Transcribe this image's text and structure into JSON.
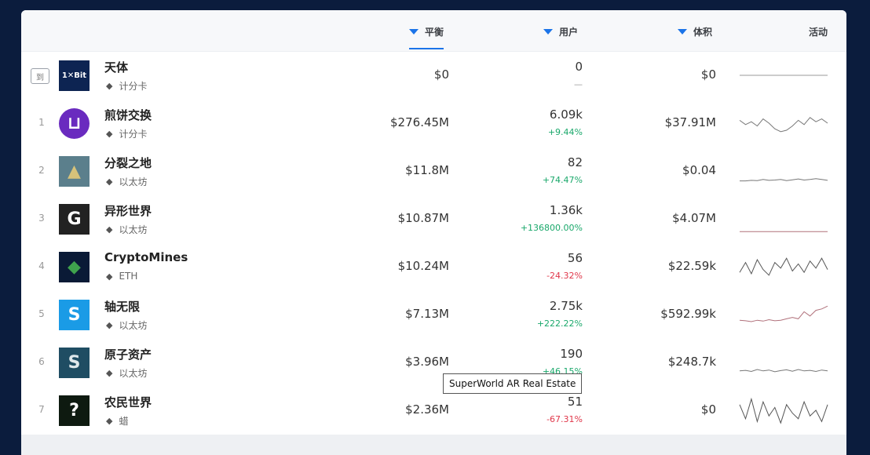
{
  "header": {
    "balance_label": "平衡",
    "users_label": "用户",
    "volume_label": "体积",
    "activity_label": "活动"
  },
  "rows": [
    {
      "rank": "到",
      "name": "天体",
      "chain": "计分卡",
      "balance": "$0",
      "users": "0",
      "change": "—",
      "change_dir": "neutral",
      "volume": "$0",
      "logo_icon": "onexbit-logo",
      "logo_text": "1✕Bit",
      "logo_bg": "#0d2452",
      "logo_color": "#ffffff",
      "spark_color": "#999999",
      "spark": [
        0.5,
        0.5,
        0.5,
        0.5,
        0.5,
        0.5,
        0.5,
        0.5,
        0.5,
        0.5,
        0.5,
        0.5,
        0.5,
        0.5,
        0.5,
        0.5
      ]
    },
    {
      "rank": "1",
      "name": "煎饼交换",
      "chain": "计分卡",
      "balance": "$276.45M",
      "users": "6.09k",
      "change": "+9.44%",
      "change_dir": "up",
      "volume": "$37.91M",
      "logo_icon": "pancake-logo",
      "logo_text": "⊔",
      "logo_bg": "#6a2bbf",
      "logo_color": "#ffffff",
      "spark_color": "#777777",
      "spark": [
        0.4,
        0.55,
        0.45,
        0.6,
        0.35,
        0.5,
        0.7,
        0.8,
        0.75,
        0.6,
        0.4,
        0.55,
        0.3,
        0.45,
        0.35,
        0.5
      ]
    },
    {
      "rank": "2",
      "name": "分裂之地",
      "chain": "以太坊",
      "balance": "$11.8M",
      "users": "82",
      "change": "+74.47%",
      "change_dir": "up",
      "volume": "$0.04",
      "logo_icon": "realm-logo",
      "logo_text": "▲",
      "logo_bg": "#5b7f8c",
      "logo_color": "#d6c27a",
      "spark_color": "#777777",
      "spark": [
        0.85,
        0.85,
        0.83,
        0.84,
        0.8,
        0.83,
        0.82,
        0.8,
        0.84,
        0.81,
        0.78,
        0.82,
        0.8,
        0.77,
        0.8,
        0.83
      ]
    },
    {
      "rank": "3",
      "name": "异形世界",
      "chain": "以太坊",
      "balance": "$10.87M",
      "users": "1.36k",
      "change": "+136800.00%",
      "change_dir": "up",
      "volume": "$4.07M",
      "logo_icon": "g-logo",
      "logo_text": "G",
      "logo_bg": "#222222",
      "logo_color": "#ffffff",
      "spark_color": "#b0707a",
      "spark": [
        0.95,
        0.95,
        0.95,
        0.95,
        0.95,
        0.95,
        0.95,
        0.95,
        0.95,
        0.95,
        0.95,
        0.95,
        0.95,
        0.95,
        0.95,
        0.95
      ]
    },
    {
      "rank": "4",
      "name": "CryptoMines",
      "chain": "ETH",
      "balance": "$10.24M",
      "users": "56",
      "change": "-24.32%",
      "change_dir": "down",
      "volume": "$22.59k",
      "logo_icon": "cryptomines-logo",
      "logo_text": "◆",
      "logo_bg": "#0a1a36",
      "logo_color": "#3fa34d",
      "spark_color": "#555555",
      "spark": [
        0.7,
        0.35,
        0.75,
        0.25,
        0.6,
        0.8,
        0.35,
        0.55,
        0.2,
        0.65,
        0.4,
        0.7,
        0.3,
        0.55,
        0.2,
        0.6
      ]
    },
    {
      "rank": "5",
      "name": "轴无限",
      "chain": "以太坊",
      "balance": "$7.13M",
      "users": "2.75k",
      "change": "+222.22%",
      "change_dir": "up",
      "volume": "$592.99k",
      "logo_icon": "sandbox-logo",
      "logo_text": "S",
      "logo_bg": "#1a9be6",
      "logo_color": "#ffffff",
      "spark_color": "#b0707a",
      "spark": [
        0.7,
        0.72,
        0.75,
        0.7,
        0.73,
        0.68,
        0.72,
        0.7,
        0.65,
        0.6,
        0.65,
        0.4,
        0.55,
        0.35,
        0.3,
        0.2
      ]
    },
    {
      "rank": "6",
      "name": "原子资产",
      "chain": "以太坊",
      "balance": "$3.96M",
      "users": "190",
      "change": "+46.15%",
      "change_dir": "up",
      "volume": "$248.7k",
      "logo_icon": "superworld-logo",
      "logo_text": "S",
      "logo_bg": "#1f4d63",
      "logo_color": "#dfe8ec",
      "spark_color": "#777777",
      "spark": [
        0.8,
        0.78,
        0.82,
        0.75,
        0.8,
        0.77,
        0.83,
        0.79,
        0.76,
        0.81,
        0.75,
        0.8,
        0.78,
        0.82,
        0.77,
        0.8
      ]
    },
    {
      "rank": "7",
      "name": "农民世界",
      "chain": "蜡",
      "balance": "$2.36M",
      "users": "51",
      "change": "-67.31%",
      "change_dir": "down",
      "volume": "$0",
      "logo_icon": "farmersworld-logo",
      "logo_text": "?",
      "logo_bg": "#0e1a10",
      "logo_color": "#ffffff",
      "spark_color": "#555555",
      "spark": [
        0.3,
        0.8,
        0.1,
        0.9,
        0.2,
        0.7,
        0.4,
        0.95,
        0.3,
        0.6,
        0.8,
        0.2,
        0.7,
        0.5,
        0.9,
        0.3
      ]
    }
  ],
  "tooltip": "SuperWorld AR Real Estate"
}
